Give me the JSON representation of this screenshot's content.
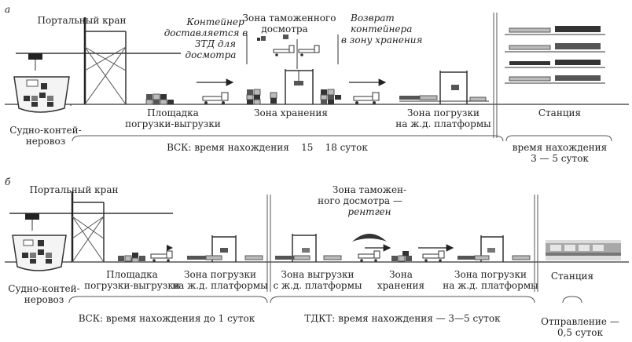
{
  "panel_a": {
    "letter": "а",
    "crane": "Портальный кран",
    "ship": [
      "Судно-контей-",
      "неровоз"
    ],
    "container_note": [
      "Контейнер",
      "доставляется в",
      "ЗТД для",
      "досмотра"
    ],
    "customs_zone": [
      "Зона таможенного",
      "досмотра"
    ],
    "return_note": [
      "Возврат",
      "контейнера",
      "в зону хранения"
    ],
    "loading_area": [
      "Площадка",
      "погрузки-выгрузки"
    ],
    "storage_zone": "Зона хранения",
    "rail_zone": [
      "Зона погрузки",
      "на ж.д. платформы"
    ],
    "station": "Станция",
    "vsk": "ВСК: время нахождения    15    18 суток",
    "station_time": [
      "время нахождения",
      "3 — 5 суток"
    ]
  },
  "panel_b": {
    "letter": "б",
    "crane": "Портальный кран",
    "ship": [
      "Судно-контей-",
      "неровоз"
    ],
    "customs_zone": [
      "Зона таможен-",
      "ного досмотра —"
    ],
    "xray": "рентген",
    "loading_area": [
      "Площадка",
      "погрузки-выгрузки"
    ],
    "rail_zone1": [
      "Зона погрузки",
      "на ж.д. платформы"
    ],
    "unload_zone": [
      "Зона выгрузки",
      "с ж.д. платформы"
    ],
    "storage_zone": [
      "Зона",
      "хранения"
    ],
    "rail_zone2": [
      "Зона погрузки",
      "на ж.д. платформы"
    ],
    "station": "Станция",
    "vsk": "ВСК: время нахождения до 1 суток",
    "tdk": "ТДКТ: время нахождения — 3—5 суток",
    "dispatch": [
      "Отправление —",
      "0,5 суток"
    ]
  },
  "colors": {
    "ink": "#222222",
    "dark": "#333333",
    "mid": "#777777",
    "light": "#bbbbbb",
    "accent": "#8a8a8a"
  }
}
